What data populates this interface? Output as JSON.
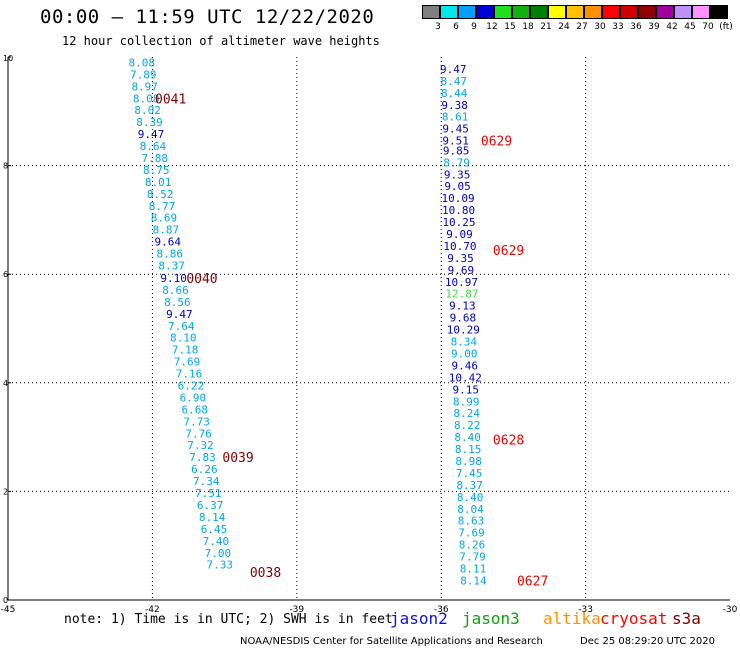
{
  "header": {
    "title": "00:00 — 11:59 UTC 12/22/2020",
    "subtitle": "12 hour collection of altimeter wave heights"
  },
  "colorbar": {
    "labels": [
      "3",
      "6",
      "9",
      "12",
      "15",
      "18",
      "21",
      "24",
      "27",
      "30",
      "33",
      "36",
      "39",
      "42",
      "45",
      "70",
      "(ft)"
    ],
    "colors": [
      "#808080",
      "#00e8e8",
      "#00a0ff",
      "#0000d0",
      "#20e020",
      "#10b010",
      "#008000",
      "#ffff00",
      "#ffc000",
      "#ff9000",
      "#ff0000",
      "#d00000",
      "#900000",
      "#a000a0",
      "#c090ff",
      "#ff90ff",
      "#000000"
    ]
  },
  "legend": {
    "note": "note: 1) Time is in UTC; 2) SWH is in feet",
    "satellites": [
      {
        "name": "jason2",
        "color": "#1010e0"
      },
      {
        "name": "jason3",
        "color": "#10a010"
      },
      {
        "name": "altika",
        "color": "#ff9000"
      },
      {
        "name": "cryosat",
        "color": "#ff0000"
      },
      {
        "name": "s3a",
        "color": "#800000"
      }
    ]
  },
  "footer": {
    "left": "NOAA/NESDIS Center for Satellite Applications and Research",
    "right": "Dec 25 08:29:20 UTC 2020"
  },
  "chart_data": {
    "type": "scatter",
    "title": "00:00 — 11:59 UTC 12/22/2020",
    "subtitle": "12 hour collection of altimeter wave heights",
    "xlim": [
      -45,
      -30
    ],
    "ylim": [
      0,
      10
    ],
    "x_ticks": [
      "-45",
      "-42",
      "-39",
      "-36",
      "-33",
      "-30"
    ],
    "x_tick_values": [
      -45,
      -42,
      -39,
      -36,
      -33,
      -30
    ],
    "y_ticks": [
      "0",
      "2",
      "4",
      "6",
      "8",
      "10"
    ],
    "y_tick_values": [
      0,
      2,
      4,
      6,
      8,
      10
    ],
    "grid": true,
    "colors": {
      "c": "#00a8e8",
      "b": "#0000c8",
      "g": "#40e040"
    },
    "tracks": [
      {
        "points": [
          {
            "x": -42.22,
            "y": 9.9,
            "v": "8.08",
            "c": "c"
          },
          {
            "x": -42.19,
            "y": 9.68,
            "v": "7.89",
            "c": "c"
          },
          {
            "x": -42.16,
            "y": 9.46,
            "v": "8.97",
            "c": "c"
          },
          {
            "x": -42.13,
            "y": 9.24,
            "v": "8.08",
            "c": "c"
          },
          {
            "x": -42.1,
            "y": 9.02,
            "v": "8.02",
            "c": "c"
          },
          {
            "x": -42.06,
            "y": 8.8,
            "v": "8.39",
            "c": "c"
          },
          {
            "x": -42.03,
            "y": 8.58,
            "v": "9.47",
            "c": "b"
          },
          {
            "x": -41.99,
            "y": 8.36,
            "v": "8.64",
            "c": "c"
          },
          {
            "x": -41.95,
            "y": 8.14,
            "v": "7.88",
            "c": "c"
          },
          {
            "x": -41.92,
            "y": 7.92,
            "v": "8.75",
            "c": "c"
          },
          {
            "x": -41.88,
            "y": 7.7,
            "v": "8.01",
            "c": "c"
          },
          {
            "x": -41.84,
            "y": 7.48,
            "v": "8.52",
            "c": "c"
          },
          {
            "x": -41.8,
            "y": 7.26,
            "v": "8.77",
            "c": "c"
          },
          {
            "x": -41.76,
            "y": 7.04,
            "v": "8.69",
            "c": "c"
          },
          {
            "x": -41.72,
            "y": 6.82,
            "v": "8.87",
            "c": "c"
          },
          {
            "x": -41.68,
            "y": 6.6,
            "v": "9.64",
            "c": "b"
          },
          {
            "x": -41.64,
            "y": 6.38,
            "v": "8.86",
            "c": "c"
          },
          {
            "x": -41.6,
            "y": 6.16,
            "v": "8.37",
            "c": "c"
          },
          {
            "x": -41.56,
            "y": 5.93,
            "v": "9.10",
            "c": "b"
          },
          {
            "x": -41.52,
            "y": 5.71,
            "v": "8.66",
            "c": "c"
          },
          {
            "x": -41.48,
            "y": 5.49,
            "v": "8.56",
            "c": "c"
          },
          {
            "x": -41.44,
            "y": 5.27,
            "v": "9.47",
            "c": "b"
          },
          {
            "x": -41.4,
            "y": 5.05,
            "v": "7.64",
            "c": "c"
          },
          {
            "x": -41.36,
            "y": 4.83,
            "v": "8.10",
            "c": "c"
          },
          {
            "x": -41.32,
            "y": 4.61,
            "v": "7.18",
            "c": "c"
          },
          {
            "x": -41.28,
            "y": 4.39,
            "v": "7.69",
            "c": "c"
          },
          {
            "x": -41.24,
            "y": 4.17,
            "v": "7.16",
            "c": "c"
          },
          {
            "x": -41.2,
            "y": 3.95,
            "v": "6.22",
            "c": "c"
          },
          {
            "x": -41.16,
            "y": 3.73,
            "v": "6.90",
            "c": "c"
          },
          {
            "x": -41.12,
            "y": 3.51,
            "v": "6.68",
            "c": "c"
          },
          {
            "x": -41.08,
            "y": 3.29,
            "v": "7.73",
            "c": "c"
          },
          {
            "x": -41.04,
            "y": 3.07,
            "v": "7.76",
            "c": "c"
          },
          {
            "x": -41.0,
            "y": 2.85,
            "v": "7.32",
            "c": "c"
          },
          {
            "x": -40.96,
            "y": 2.63,
            "v": "7.83",
            "c": "c"
          },
          {
            "x": -40.92,
            "y": 2.41,
            "v": "6.26",
            "c": "c"
          },
          {
            "x": -40.88,
            "y": 2.19,
            "v": "7.34",
            "c": "c"
          },
          {
            "x": -40.84,
            "y": 1.97,
            "v": "7.51",
            "c": "c"
          },
          {
            "x": -40.8,
            "y": 1.75,
            "v": "6.37",
            "c": "c"
          },
          {
            "x": -40.76,
            "y": 1.53,
            "v": "8.14",
            "c": "c"
          },
          {
            "x": -40.72,
            "y": 1.31,
            "v": "6.45",
            "c": "c"
          },
          {
            "x": -40.68,
            "y": 1.09,
            "v": "7.40",
            "c": "c"
          },
          {
            "x": -40.64,
            "y": 0.87,
            "v": "7.00",
            "c": "c"
          },
          {
            "x": -40.6,
            "y": 0.65,
            "v": "7.33",
            "c": "c"
          }
        ],
        "time_labels": [
          {
            "x": -41.62,
            "y": 9.24,
            "t": "0041"
          },
          {
            "x": -40.97,
            "y": 5.93,
            "t": "0040"
          },
          {
            "x": -40.22,
            "y": 2.63,
            "t": "0039"
          },
          {
            "x": -39.65,
            "y": 0.52,
            "t": "0038"
          }
        ]
      },
      {
        "points": [
          {
            "x": -35.75,
            "y": 9.78,
            "v": "9.47",
            "c": "b"
          },
          {
            "x": -35.74,
            "y": 9.56,
            "v": "8.47",
            "c": "c"
          },
          {
            "x": -35.73,
            "y": 9.34,
            "v": "8.44",
            "c": "c"
          },
          {
            "x": -35.72,
            "y": 9.12,
            "v": "9.38",
            "c": "b"
          },
          {
            "x": -35.71,
            "y": 8.9,
            "v": "8.61",
            "c": "c"
          },
          {
            "x": -35.7,
            "y": 8.68,
            "v": "9.45",
            "c": "b"
          },
          {
            "x": -35.7,
            "y": 8.46,
            "v": "9.51",
            "c": "b"
          },
          {
            "x": -35.69,
            "y": 8.28,
            "v": "9.85",
            "c": "b"
          },
          {
            "x": -35.68,
            "y": 8.06,
            "v": "8.79",
            "c": "c"
          },
          {
            "x": -35.67,
            "y": 7.84,
            "v": "9.35",
            "c": "b"
          },
          {
            "x": -35.66,
            "y": 7.62,
            "v": "9.05",
            "c": "b"
          },
          {
            "x": -35.65,
            "y": 7.4,
            "v": "10.09",
            "c": "b"
          },
          {
            "x": -35.64,
            "y": 7.18,
            "v": "10.80",
            "c": "b"
          },
          {
            "x": -35.63,
            "y": 6.96,
            "v": "10.25",
            "c": "b"
          },
          {
            "x": -35.62,
            "y": 6.74,
            "v": "9.09",
            "c": "b"
          },
          {
            "x": -35.61,
            "y": 6.52,
            "v": "10.70",
            "c": "b"
          },
          {
            "x": -35.6,
            "y": 6.3,
            "v": "9.35",
            "c": "b"
          },
          {
            "x": -35.59,
            "y": 6.08,
            "v": "9.69",
            "c": "b"
          },
          {
            "x": -35.58,
            "y": 5.86,
            "v": "10.97",
            "c": "b"
          },
          {
            "x": -35.57,
            "y": 5.64,
            "v": "12.87",
            "c": "g"
          },
          {
            "x": -35.56,
            "y": 5.42,
            "v": "9.13",
            "c": "b"
          },
          {
            "x": -35.55,
            "y": 5.2,
            "v": "9.68",
            "c": "b"
          },
          {
            "x": -35.54,
            "y": 4.98,
            "v": "10.29",
            "c": "b"
          },
          {
            "x": -35.53,
            "y": 4.76,
            "v": "8.34",
            "c": "c"
          },
          {
            "x": -35.52,
            "y": 4.54,
            "v": "9.00",
            "c": "c"
          },
          {
            "x": -35.51,
            "y": 4.32,
            "v": "9.46",
            "c": "b"
          },
          {
            "x": -35.5,
            "y": 4.1,
            "v": "10.42",
            "c": "b"
          },
          {
            "x": -35.49,
            "y": 3.88,
            "v": "9.15",
            "c": "b"
          },
          {
            "x": -35.48,
            "y": 3.66,
            "v": "8.99",
            "c": "c"
          },
          {
            "x": -35.47,
            "y": 3.44,
            "v": "8.24",
            "c": "c"
          },
          {
            "x": -35.46,
            "y": 3.22,
            "v": "8.22",
            "c": "c"
          },
          {
            "x": -35.45,
            "y": 3.0,
            "v": "8.40",
            "c": "c"
          },
          {
            "x": -35.44,
            "y": 2.78,
            "v": "8.15",
            "c": "c"
          },
          {
            "x": -35.43,
            "y": 2.56,
            "v": "8.98",
            "c": "c"
          },
          {
            "x": -35.42,
            "y": 2.34,
            "v": "7.45",
            "c": "c"
          },
          {
            "x": -35.41,
            "y": 2.12,
            "v": "8.37",
            "c": "c"
          },
          {
            "x": -35.4,
            "y": 1.9,
            "v": "8.40",
            "c": "c"
          },
          {
            "x": -35.39,
            "y": 1.68,
            "v": "8.04",
            "c": "c"
          },
          {
            "x": -35.38,
            "y": 1.46,
            "v": "8.63",
            "c": "c"
          },
          {
            "x": -35.37,
            "y": 1.24,
            "v": "7.69",
            "c": "c"
          },
          {
            "x": -35.36,
            "y": 1.02,
            "v": "8.26",
            "c": "c"
          },
          {
            "x": -35.35,
            "y": 0.8,
            "v": "7.79",
            "c": "c"
          },
          {
            "x": -35.34,
            "y": 0.58,
            "v": "8.11",
            "c": "c"
          },
          {
            "x": -35.33,
            "y": 0.36,
            "v": "8.14",
            "c": "c"
          }
        ],
        "time_labels": [
          {
            "x": -34.85,
            "y": 8.46,
            "t": "0629"
          },
          {
            "x": -34.6,
            "y": 6.45,
            "t": "0629"
          },
          {
            "x": -34.6,
            "y": 2.96,
            "t": "0628"
          },
          {
            "x": -34.1,
            "y": 0.36,
            "t": "0627"
          }
        ]
      }
    ]
  }
}
